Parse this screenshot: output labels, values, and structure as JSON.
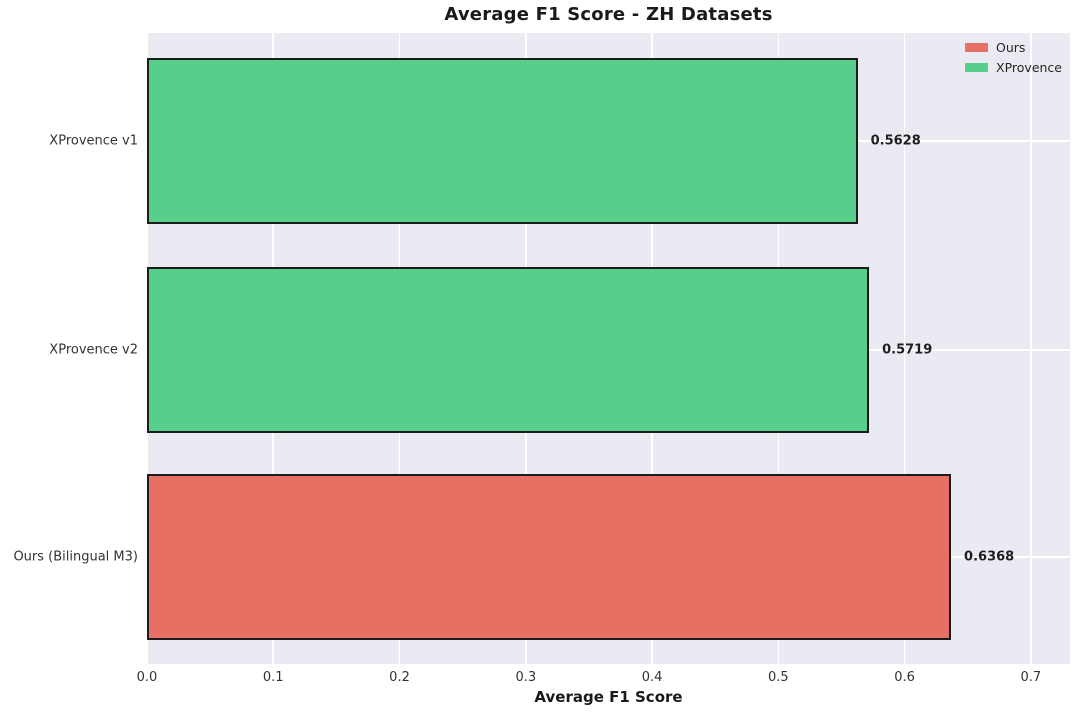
{
  "chart_data": {
    "type": "bar",
    "orientation": "horizontal",
    "title": "Average F1 Score - ZH Datasets",
    "xlabel": "Average F1 Score",
    "ylabel": "",
    "categories": [
      "XProvence v1",
      "XProvence v2",
      "Ours (Bilingual M3)"
    ],
    "values": [
      0.5628,
      0.5719,
      0.6368
    ],
    "value_labels": [
      "0.5628",
      "0.5719",
      "0.6368"
    ],
    "groups": [
      "XProvence",
      "XProvence",
      "Ours"
    ],
    "bar_colors": [
      "#56cf8b",
      "#56cf8b",
      "#e76f63"
    ],
    "xlim": [
      0,
      0.731
    ],
    "xticks": [
      "0.0",
      "0.1",
      "0.2",
      "0.3",
      "0.4",
      "0.5",
      "0.6",
      "0.7"
    ],
    "xtick_values": [
      0.0,
      0.1,
      0.2,
      0.3,
      0.4,
      0.5,
      0.6,
      0.7
    ],
    "grid": true,
    "legend": {
      "position": "upper-right",
      "entries": [
        {
          "label": "Ours",
          "color": "#e76f63"
        },
        {
          "label": "XProvence",
          "color": "#56cf8b"
        }
      ]
    },
    "style": {
      "plot_background": "#eaebf2",
      "grid_color": "#ffffff",
      "bar_edge_color": "#1c1c1c",
      "text_color": "#262626"
    }
  }
}
